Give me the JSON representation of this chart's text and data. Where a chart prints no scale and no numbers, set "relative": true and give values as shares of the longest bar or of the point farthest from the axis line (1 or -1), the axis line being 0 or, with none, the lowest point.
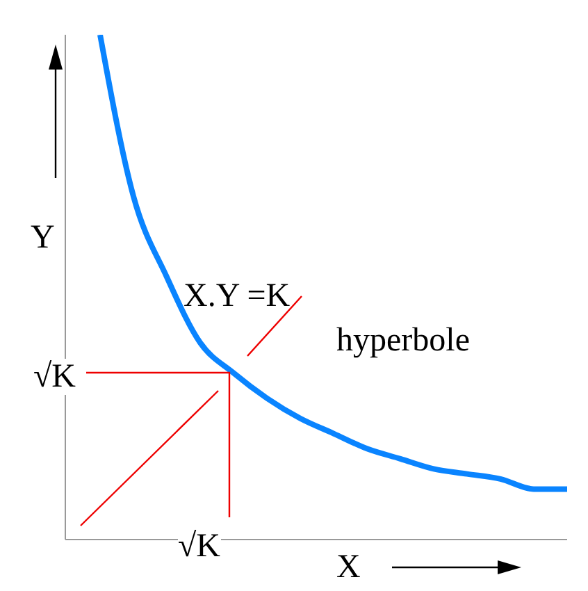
{
  "chart_data": {
    "type": "line",
    "relative": true,
    "xlabel": "X",
    "ylabel": "Y",
    "categories": [
      null,
      null,
      null,
      null,
      null,
      null,
      null,
      null,
      null,
      null,
      null,
      null,
      null,
      null,
      null
    ],
    "series": [
      {
        "color": "#0a84ff",
        "values": [
          1,
          0.68,
          0.52,
          0.39,
          0.33,
          0.28,
          0.24,
          0.21,
          0.18,
          0.16,
          0.14,
          0.13,
          0.12,
          0.1,
          0.1
        ]
      }
    ],
    "annotations": [
      "X.Y =K",
      "hyperbole",
      "√K",
      "√K"
    ]
  }
}
